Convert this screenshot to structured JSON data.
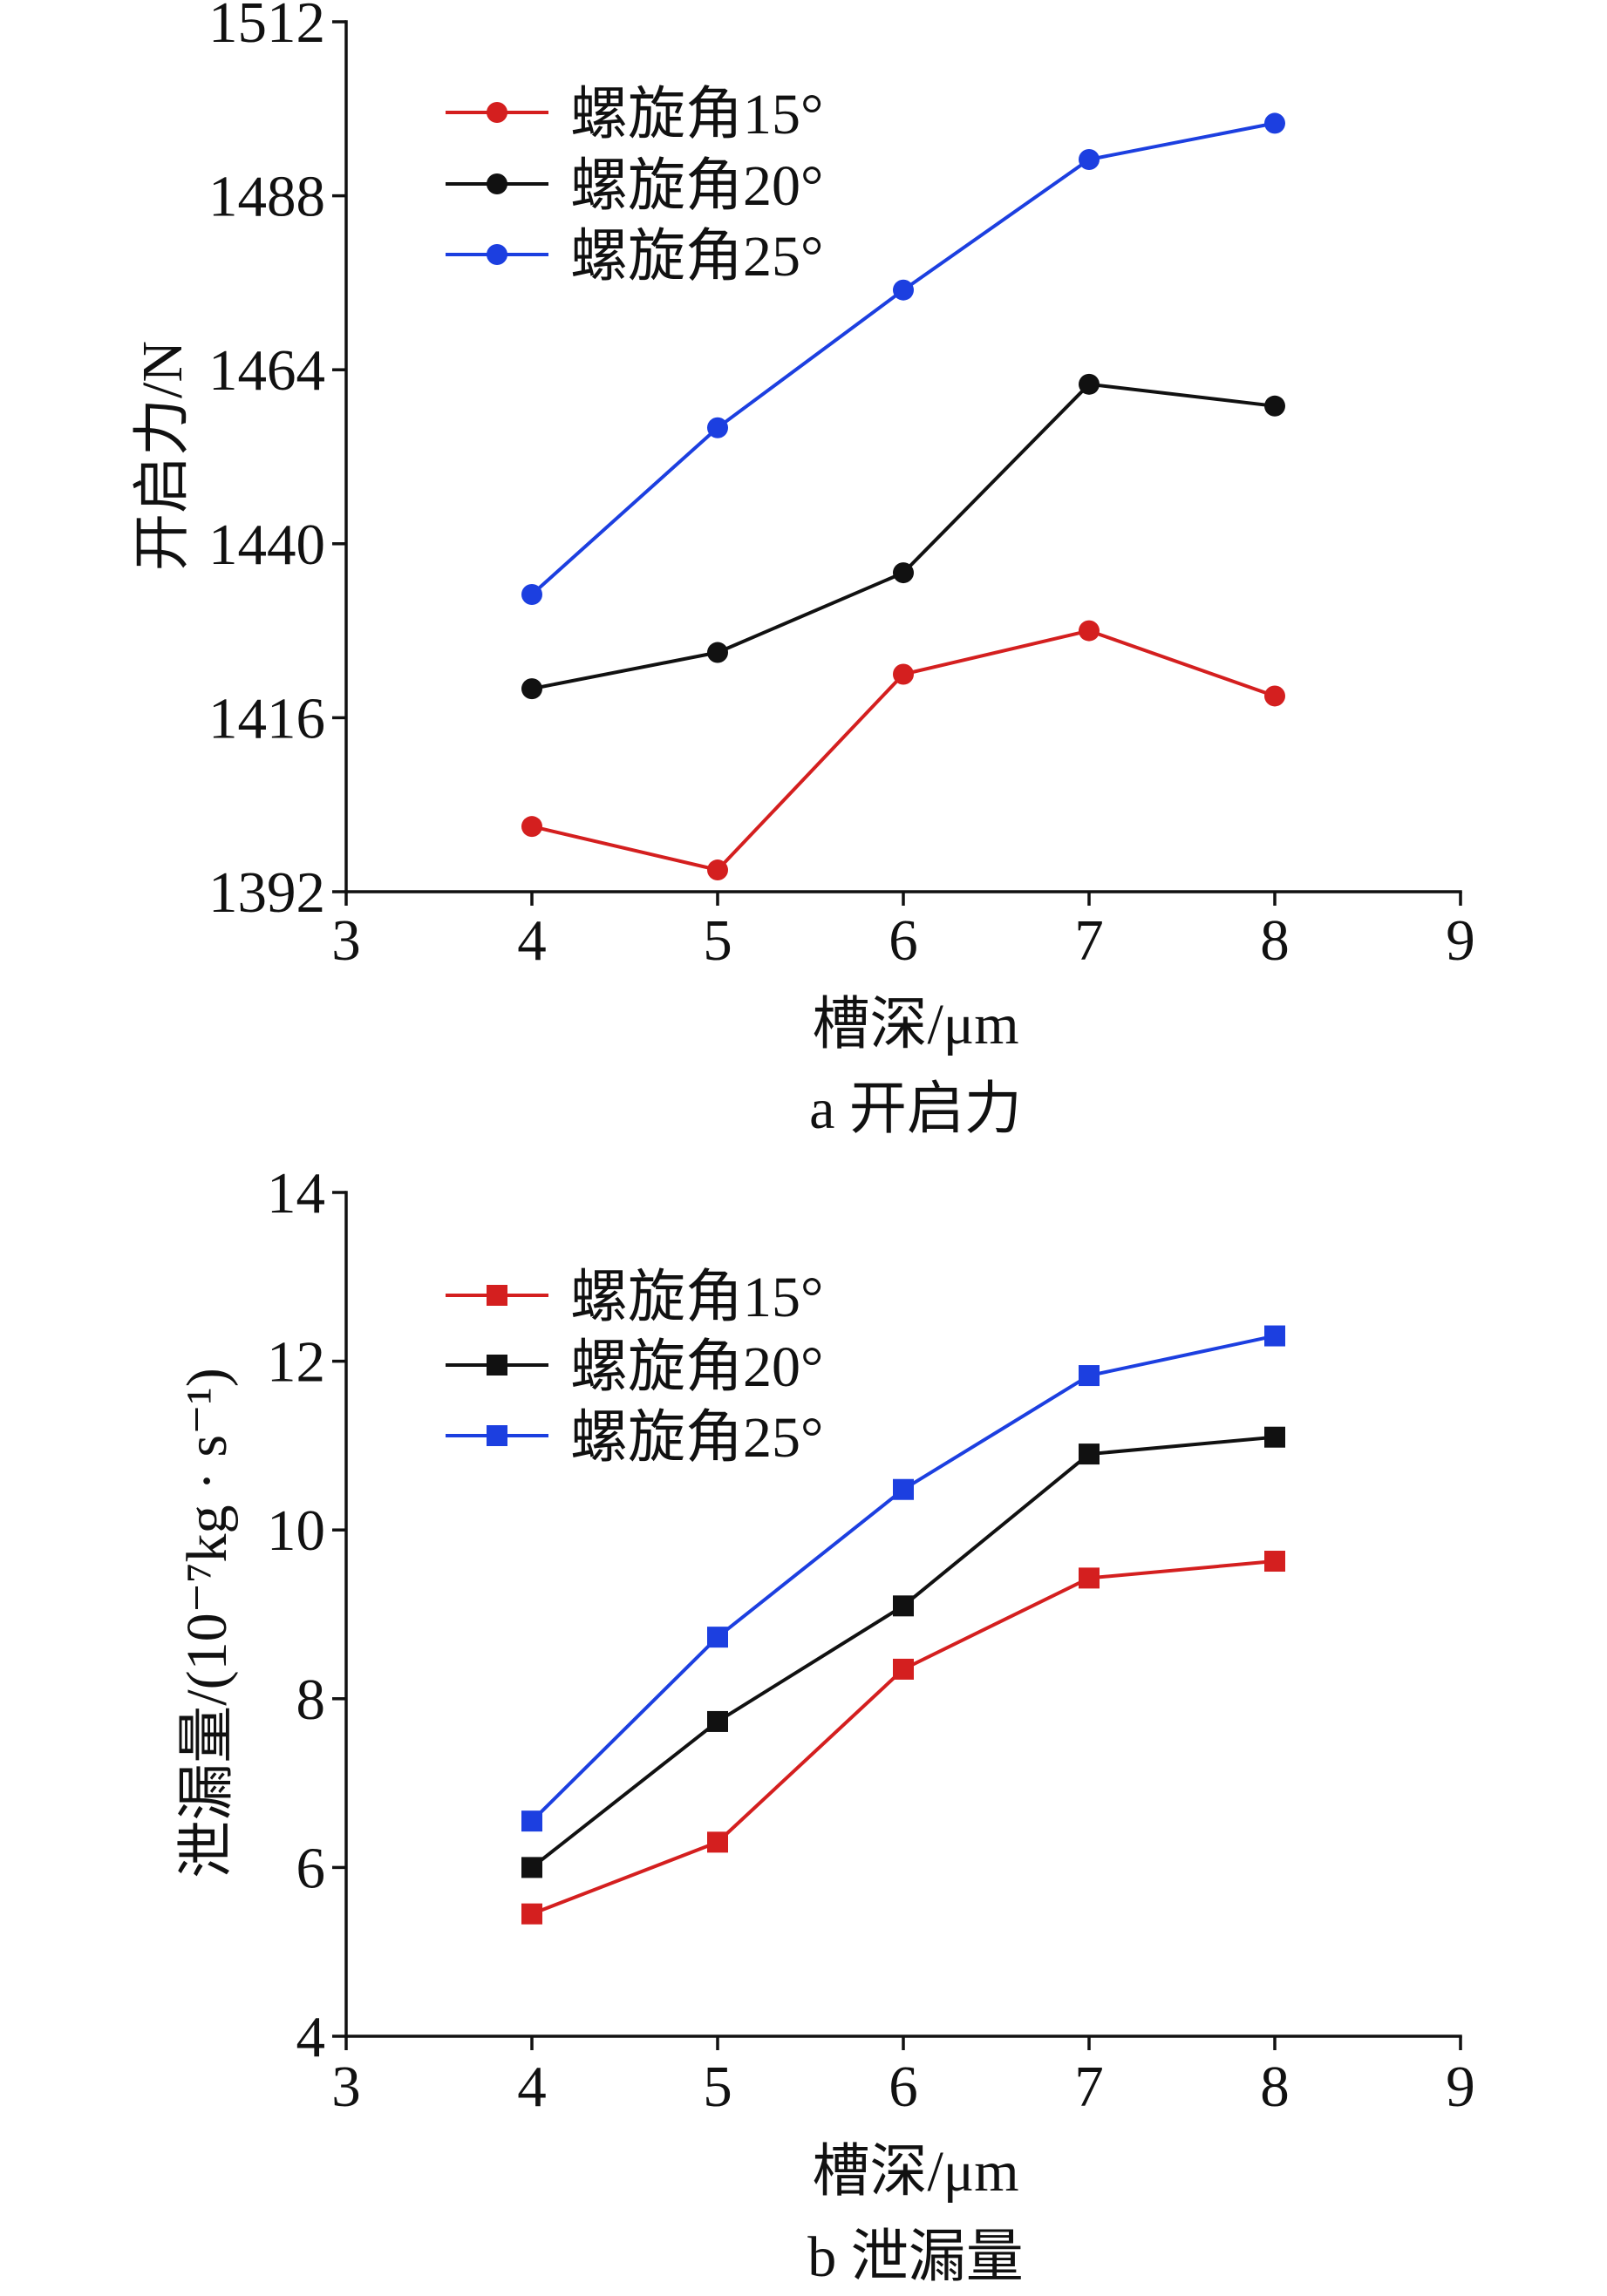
{
  "chart_data": [
    {
      "type": "line",
      "title": "a 开启力",
      "xlabel": "槽深/μm",
      "ylabel": "开启力/N",
      "xlim": [
        3,
        9
      ],
      "ylim": [
        1392,
        1512
      ],
      "x_ticks": [
        3,
        4,
        5,
        6,
        7,
        8,
        9
      ],
      "y_ticks": [
        1392,
        1416,
        1440,
        1464,
        1488,
        1512
      ],
      "grid": false,
      "legend_position": "top-left",
      "marker": "circle",
      "x": [
        4,
        5,
        6,
        7,
        8
      ],
      "series": [
        {
          "name": "螺旋角15°",
          "color": "#d41f1f",
          "values": [
            1401,
            1395,
            1422,
            1428,
            1419
          ]
        },
        {
          "name": "螺旋角20°",
          "color": "#111111",
          "values": [
            1420,
            1425,
            1436,
            1462,
            1459
          ]
        },
        {
          "name": "螺旋角25°",
          "color": "#1c3fe0",
          "values": [
            1433,
            1456,
            1475,
            1493,
            1498
          ]
        }
      ]
    },
    {
      "type": "line",
      "title": "b 泄漏量",
      "xlabel": "槽深/μm",
      "ylabel": "泄漏量/(10⁻⁷kg · s⁻¹)",
      "xlim": [
        3,
        9
      ],
      "ylim": [
        4,
        14
      ],
      "x_ticks": [
        3,
        4,
        5,
        6,
        7,
        8,
        9
      ],
      "y_ticks": [
        4,
        6,
        8,
        10,
        12,
        14
      ],
      "grid": false,
      "legend_position": "top-left",
      "marker": "square",
      "x": [
        4,
        5,
        6,
        7,
        8
      ],
      "series": [
        {
          "name": "螺旋角15°",
          "color": "#d41f1f",
          "values": [
            5.45,
            6.3,
            8.35,
            9.43,
            9.63
          ]
        },
        {
          "name": "螺旋角20°",
          "color": "#111111",
          "values": [
            6.0,
            7.73,
            9.1,
            10.9,
            11.1
          ]
        },
        {
          "name": "螺旋角25°",
          "color": "#1c3fe0",
          "values": [
            6.55,
            8.73,
            10.48,
            11.83,
            12.3
          ]
        }
      ]
    }
  ]
}
